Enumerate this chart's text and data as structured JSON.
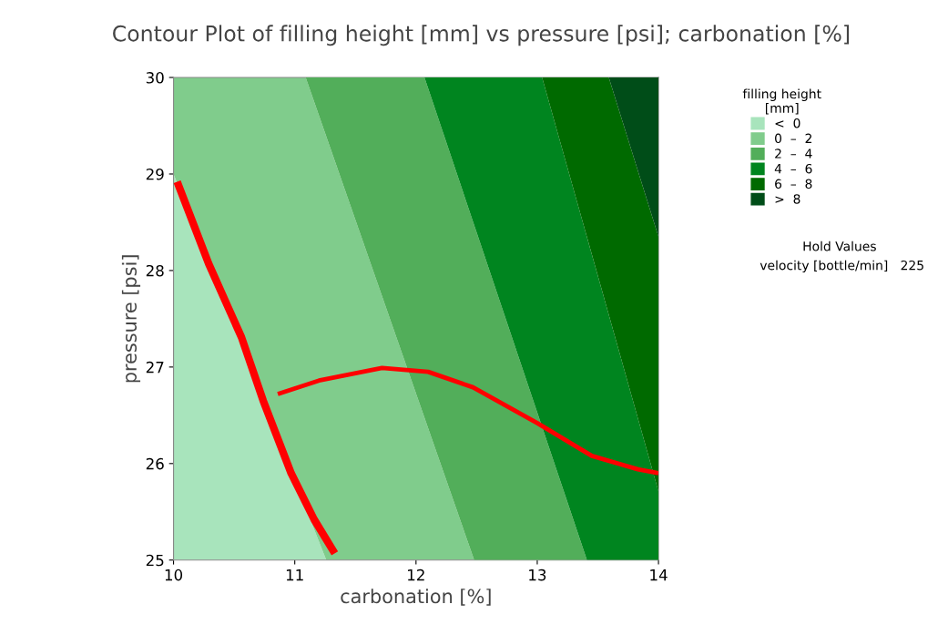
{
  "chart_data": {
    "type": "area",
    "orientation": "horizontal",
    "title": "Contour Plot of filling height [mm] vs pressure [psi]; carbonation [%]",
    "xlabel": "carbonation [%]",
    "ylabel": "pressure [psi]",
    "legend_title": "filling height\n[mm]",
    "xlim": [
      10,
      14
    ],
    "ylim": [
      25,
      30
    ],
    "xticks": [
      10,
      11,
      12,
      13,
      14
    ],
    "yticks": [
      25,
      26,
      27,
      28,
      29,
      30
    ],
    "grid": false,
    "legend": "right",
    "series": [
      {
        "name": "<  0",
        "color": "#a8e4bc",
        "x": [
          25,
          29,
          30
        ],
        "values": [
          11.26,
          10.0,
          10.0
        ]
      },
      {
        "name": "0  –  2",
        "color": "#80cc8c",
        "x": [
          25,
          30
        ],
        "values": [
          12.48,
          11.09
        ]
      },
      {
        "name": "2  –  4",
        "color": "#52ae5a",
        "x": [
          25,
          30
        ],
        "values": [
          13.41,
          12.07
        ]
      },
      {
        "name": "4  –  6",
        "color": "#00851f",
        "x": [
          25,
          25.71,
          30
        ],
        "values": [
          14,
          14,
          13.04
        ]
      },
      {
        "name": "6  –  8",
        "color": "#006a00",
        "x": [
          25,
          28.35,
          30
        ],
        "values": [
          14,
          14,
          13.59
        ]
      },
      {
        "name": ">  8",
        "color": "#004d18",
        "x": [
          25,
          30
        ],
        "values": [
          14,
          14
        ]
      },
      {
        "type": "line",
        "color": "#ff0000",
        "x": [
          28.92,
          28.07,
          27.31,
          26.65,
          25.9,
          25.42,
          25.07
        ],
        "values": [
          10.03,
          10.29,
          10.56,
          10.74,
          10.97,
          11.16,
          11.33
        ]
      },
      {
        "type": "line",
        "color": "#ff0000",
        "x": [
          26.72,
          26.86,
          26.99,
          26.95,
          26.79,
          26.42,
          26.08,
          25.94,
          25.9
        ],
        "values": [
          10.86,
          11.2,
          11.72,
          12.1,
          12.47,
          13.0,
          13.45,
          13.83,
          14.0
        ]
      }
    ],
    "annotations": [
      "Hold Values",
      "velocity [bottle/min]   225"
    ]
  }
}
